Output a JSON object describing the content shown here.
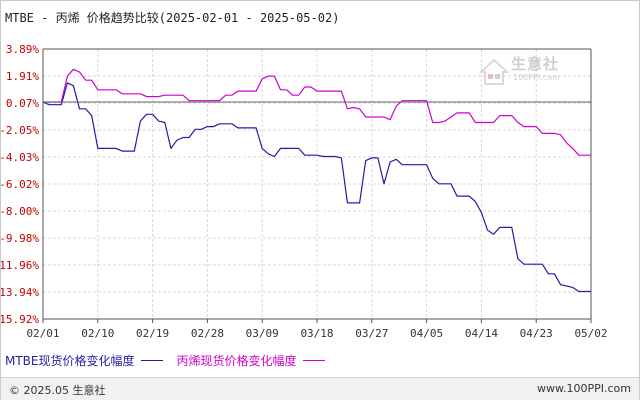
{
  "title": "MTBE - 丙烯 价格趋势比较(2025-02-01 - 2025-05-02)",
  "footer": {
    "copyright": "© 2025.05 生意社",
    "url": "www.100PPI.com"
  },
  "watermark": {
    "name": "生意社",
    "url": "100PPI.com"
  },
  "colors": {
    "mtbe": "#1f1fa8",
    "propylene": "#d000d0",
    "y_tick": "#c00000",
    "grid": "#d9d9d9",
    "axis": "#555555",
    "baseline": "#666666"
  },
  "chart_data": {
    "type": "line",
    "title": "MTBE - 丙烯 价格趋势比较(2025-02-01 - 2025-05-02)",
    "x_ticks": [
      "02/01",
      "02/10",
      "02/19",
      "02/28",
      "03/09",
      "03/18",
      "03/27",
      "04/05",
      "04/14",
      "04/23",
      "05/02"
    ],
    "y_ticks": [
      "3.89%",
      "1.91%",
      "0.07%",
      "-2.05%",
      "-4.03%",
      "-6.02%",
      "-8.00%",
      "-9.98%",
      "-11.96%",
      "-13.94%",
      "-15.92%"
    ],
    "ylim": [
      -15.92,
      3.89
    ],
    "xlim": [
      "2025-02-01",
      "2025-05-02"
    ],
    "grid": true,
    "legend_position": "bottom-left",
    "series": [
      {
        "name": "MTBE现货价格变化幅度",
        "points": [
          [
            "2025-02-01",
            0
          ],
          [
            "2025-02-02",
            -0.2
          ],
          [
            "2025-02-03",
            -0.2
          ],
          [
            "2025-02-04",
            -0.2
          ],
          [
            "2025-02-05",
            1.4
          ],
          [
            "2025-02-06",
            1.2
          ],
          [
            "2025-02-07",
            -0.5
          ],
          [
            "2025-02-08",
            -0.5
          ],
          [
            "2025-02-09",
            -1.0
          ],
          [
            "2025-02-10",
            -3.4
          ],
          [
            "2025-02-11",
            -3.4
          ],
          [
            "2025-02-12",
            -3.4
          ],
          [
            "2025-02-13",
            -3.4
          ],
          [
            "2025-02-14",
            -3.6
          ],
          [
            "2025-02-15",
            -3.6
          ],
          [
            "2025-02-16",
            -3.6
          ],
          [
            "2025-02-17",
            -1.4
          ],
          [
            "2025-02-18",
            -0.9
          ],
          [
            "2025-02-19",
            -0.9
          ],
          [
            "2025-02-20",
            -1.4
          ],
          [
            "2025-02-21",
            -1.5
          ],
          [
            "2025-02-22",
            -3.4
          ],
          [
            "2025-02-23",
            -2.8
          ],
          [
            "2025-02-24",
            -2.6
          ],
          [
            "2025-02-25",
            -2.6
          ],
          [
            "2025-02-26",
            -2.0
          ],
          [
            "2025-02-27",
            -2.0
          ],
          [
            "2025-02-28",
            -1.8
          ],
          [
            "2025-03-01",
            -1.8
          ],
          [
            "2025-03-02",
            -1.6
          ],
          [
            "2025-03-03",
            -1.6
          ],
          [
            "2025-03-04",
            -1.6
          ],
          [
            "2025-03-05",
            -1.9
          ],
          [
            "2025-03-06",
            -1.9
          ],
          [
            "2025-03-07",
            -1.9
          ],
          [
            "2025-03-08",
            -1.9
          ],
          [
            "2025-03-09",
            -3.4
          ],
          [
            "2025-03-10",
            -3.8
          ],
          [
            "2025-03-11",
            -4.0
          ],
          [
            "2025-03-12",
            -3.4
          ],
          [
            "2025-03-13",
            -3.4
          ],
          [
            "2025-03-14",
            -3.4
          ],
          [
            "2025-03-15",
            -3.4
          ],
          [
            "2025-03-16",
            -3.9
          ],
          [
            "2025-03-17",
            -3.9
          ],
          [
            "2025-03-18",
            -3.9
          ],
          [
            "2025-03-19",
            -4.0
          ],
          [
            "2025-03-20",
            -4.0
          ],
          [
            "2025-03-21",
            -4.0
          ],
          [
            "2025-03-22",
            -4.1
          ],
          [
            "2025-03-23",
            -7.4
          ],
          [
            "2025-03-24",
            -7.4
          ],
          [
            "2025-03-25",
            -7.4
          ],
          [
            "2025-03-26",
            -4.3
          ],
          [
            "2025-03-27",
            -4.1
          ],
          [
            "2025-03-28",
            -4.1
          ],
          [
            "2025-03-29",
            -6.0
          ],
          [
            "2025-03-30",
            -4.4
          ],
          [
            "2025-03-31",
            -4.2
          ],
          [
            "2025-04-01",
            -4.6
          ],
          [
            "2025-04-02",
            -4.6
          ],
          [
            "2025-04-03",
            -4.6
          ],
          [
            "2025-04-04",
            -4.6
          ],
          [
            "2025-04-05",
            -4.6
          ],
          [
            "2025-04-06",
            -5.6
          ],
          [
            "2025-04-07",
            -6.0
          ],
          [
            "2025-04-08",
            -6.0
          ],
          [
            "2025-04-09",
            -6.0
          ],
          [
            "2025-04-10",
            -6.9
          ],
          [
            "2025-04-11",
            -6.9
          ],
          [
            "2025-04-12",
            -6.9
          ],
          [
            "2025-04-13",
            -7.3
          ],
          [
            "2025-04-14",
            -8.1
          ],
          [
            "2025-04-15",
            -9.4
          ],
          [
            "2025-04-16",
            -9.7
          ],
          [
            "2025-04-17",
            -9.2
          ],
          [
            "2025-04-18",
            -9.2
          ],
          [
            "2025-04-19",
            -9.2
          ],
          [
            "2025-04-20",
            -11.5
          ],
          [
            "2025-04-21",
            -11.9
          ],
          [
            "2025-04-22",
            -11.9
          ],
          [
            "2025-04-23",
            -11.9
          ],
          [
            "2025-04-24",
            -11.9
          ],
          [
            "2025-04-25",
            -12.6
          ],
          [
            "2025-04-26",
            -12.6
          ],
          [
            "2025-04-27",
            -13.4
          ],
          [
            "2025-04-28",
            -13.5
          ],
          [
            "2025-04-29",
            -13.6
          ],
          [
            "2025-04-30",
            -13.9
          ],
          [
            "2025-05-01",
            -13.9
          ],
          [
            "2025-05-02",
            -13.9
          ]
        ]
      },
      {
        "name": "丙烯现货价格变化幅度",
        "points": [
          [
            "2025-02-01",
            0
          ],
          [
            "2025-02-02",
            0
          ],
          [
            "2025-02-03",
            0
          ],
          [
            "2025-02-04",
            0
          ],
          [
            "2025-02-05",
            1.9
          ],
          [
            "2025-02-06",
            2.4
          ],
          [
            "2025-02-07",
            2.2
          ],
          [
            "2025-02-08",
            1.6
          ],
          [
            "2025-02-09",
            1.6
          ],
          [
            "2025-02-10",
            0.9
          ],
          [
            "2025-02-11",
            0.9
          ],
          [
            "2025-02-12",
            0.9
          ],
          [
            "2025-02-13",
            0.9
          ],
          [
            "2025-02-14",
            0.6
          ],
          [
            "2025-02-15",
            0.6
          ],
          [
            "2025-02-16",
            0.6
          ],
          [
            "2025-02-17",
            0.6
          ],
          [
            "2025-02-18",
            0.4
          ],
          [
            "2025-02-19",
            0.4
          ],
          [
            "2025-02-20",
            0.4
          ],
          [
            "2025-02-21",
            0.5
          ],
          [
            "2025-02-22",
            0.5
          ],
          [
            "2025-02-23",
            0.5
          ],
          [
            "2025-02-24",
            0.5
          ],
          [
            "2025-02-25",
            0.1
          ],
          [
            "2025-02-26",
            0.1
          ],
          [
            "2025-02-27",
            0.1
          ],
          [
            "2025-02-28",
            0.1
          ],
          [
            "2025-03-01",
            0.1
          ],
          [
            "2025-03-02",
            0.1
          ],
          [
            "2025-03-03",
            0.5
          ],
          [
            "2025-03-04",
            0.5
          ],
          [
            "2025-03-05",
            0.8
          ],
          [
            "2025-03-06",
            0.8
          ],
          [
            "2025-03-07",
            0.8
          ],
          [
            "2025-03-08",
            0.8
          ],
          [
            "2025-03-09",
            1.7
          ],
          [
            "2025-03-10",
            1.9
          ],
          [
            "2025-03-11",
            1.9
          ],
          [
            "2025-03-12",
            0.9
          ],
          [
            "2025-03-13",
            0.9
          ],
          [
            "2025-03-14",
            0.5
          ],
          [
            "2025-03-15",
            0.5
          ],
          [
            "2025-03-16",
            1.1
          ],
          [
            "2025-03-17",
            1.1
          ],
          [
            "2025-03-18",
            0.8
          ],
          [
            "2025-03-19",
            0.8
          ],
          [
            "2025-03-20",
            0.8
          ],
          [
            "2025-03-21",
            0.8
          ],
          [
            "2025-03-22",
            0.8
          ],
          [
            "2025-03-23",
            -0.5
          ],
          [
            "2025-03-24",
            -0.4
          ],
          [
            "2025-03-25",
            -0.5
          ],
          [
            "2025-03-26",
            -1.1
          ],
          [
            "2025-03-27",
            -1.1
          ],
          [
            "2025-03-28",
            -1.1
          ],
          [
            "2025-03-29",
            -1.1
          ],
          [
            "2025-03-30",
            -1.3
          ],
          [
            "2025-03-31",
            -0.3
          ],
          [
            "2025-04-01",
            0.1
          ],
          [
            "2025-04-02",
            0.1
          ],
          [
            "2025-04-03",
            0.1
          ],
          [
            "2025-04-04",
            0.1
          ],
          [
            "2025-04-05",
            0.1
          ],
          [
            "2025-04-06",
            -1.5
          ],
          [
            "2025-04-07",
            -1.5
          ],
          [
            "2025-04-08",
            -1.4
          ],
          [
            "2025-04-09",
            -1.1
          ],
          [
            "2025-04-10",
            -0.8
          ],
          [
            "2025-04-11",
            -0.8
          ],
          [
            "2025-04-12",
            -0.8
          ],
          [
            "2025-04-13",
            -1.5
          ],
          [
            "2025-04-14",
            -1.5
          ],
          [
            "2025-04-15",
            -1.5
          ],
          [
            "2025-04-16",
            -1.5
          ],
          [
            "2025-04-17",
            -1.0
          ],
          [
            "2025-04-18",
            -1.0
          ],
          [
            "2025-04-19",
            -1.0
          ],
          [
            "2025-04-20",
            -1.5
          ],
          [
            "2025-04-21",
            -1.8
          ],
          [
            "2025-04-22",
            -1.8
          ],
          [
            "2025-04-23",
            -1.8
          ],
          [
            "2025-04-24",
            -2.3
          ],
          [
            "2025-04-25",
            -2.3
          ],
          [
            "2025-04-26",
            -2.3
          ],
          [
            "2025-04-27",
            -2.4
          ],
          [
            "2025-04-28",
            -3.0
          ],
          [
            "2025-04-29",
            -3.4
          ],
          [
            "2025-04-30",
            -3.9
          ],
          [
            "2025-05-01",
            -3.9
          ],
          [
            "2025-05-02",
            -3.9
          ]
        ]
      }
    ]
  }
}
